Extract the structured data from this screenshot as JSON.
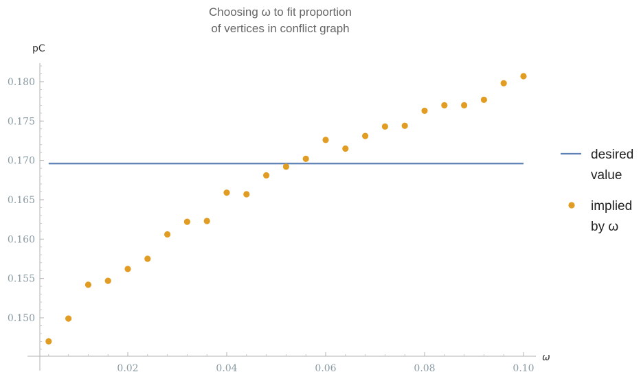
{
  "chart_data": {
    "type": "scatter",
    "title_lines": [
      "Choosing ω to fit proportion",
      "of vertices in conflict graph"
    ],
    "xlabel": "ω",
    "ylabel": "pC",
    "xlim": [
      0,
      0.1
    ],
    "ylim": [
      0.1455,
      0.1825
    ],
    "x_ticks": [
      0.02,
      0.04,
      0.06,
      0.08,
      0.1
    ],
    "x_tick_labels": [
      "0.02",
      "0.04",
      "0.06",
      "0.08",
      "0.10"
    ],
    "y_ticks": [
      0.15,
      0.155,
      0.16,
      0.165,
      0.17,
      0.175,
      0.18
    ],
    "y_tick_labels": [
      "0.150",
      "0.155",
      "0.160",
      "0.165",
      "0.170",
      "0.175",
      "0.180"
    ],
    "grid": false,
    "legend_position": "right",
    "series": [
      {
        "name_lines": [
          "desired",
          "value"
        ],
        "kind": "line",
        "color": "#5e81b5",
        "x": [
          0.004,
          0.1
        ],
        "y": [
          0.1696,
          0.1696
        ]
      },
      {
        "name_lines": [
          "implied",
          "by ω"
        ],
        "kind": "points",
        "color": "#e19c24",
        "x": [
          0.004,
          0.008,
          0.012,
          0.016,
          0.02,
          0.024,
          0.028,
          0.032,
          0.036,
          0.04,
          0.044,
          0.048,
          0.052,
          0.056,
          0.06,
          0.064,
          0.068,
          0.072,
          0.076,
          0.08,
          0.084,
          0.088,
          0.092,
          0.096,
          0.1
        ],
        "y": [
          0.147,
          0.1499,
          0.1542,
          0.1547,
          0.1562,
          0.1575,
          0.1606,
          0.1622,
          0.1623,
          0.1659,
          0.1657,
          0.1681,
          0.1692,
          0.1702,
          0.1726,
          0.1715,
          0.1731,
          0.1743,
          0.1744,
          0.1763,
          0.177,
          0.177,
          0.1777,
          0.1798,
          0.1807
        ]
      }
    ]
  }
}
